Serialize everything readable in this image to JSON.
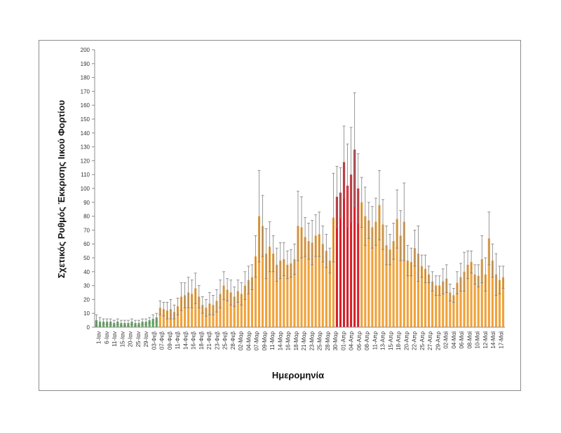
{
  "chart_data": {
    "type": "bar",
    "title": "",
    "xlabel": "Ημερομηνία",
    "ylabel": "Σχετικός Ρυθμός Έκκρισης Ιικού Φορτίου",
    "ylim": [
      0,
      200
    ],
    "yticks": [
      0,
      10,
      20,
      30,
      40,
      50,
      60,
      70,
      80,
      90,
      100,
      110,
      120,
      130,
      140,
      150,
      160,
      170,
      180,
      190,
      200
    ],
    "grid": false,
    "legend": "none",
    "colors": {
      "green": "#5aaa5a",
      "orange": "#f0a23a",
      "red": "#d4212b",
      "error": "#7f7f7f",
      "axis": "#8c8c8c"
    },
    "x_tick_labels": [
      "1-Ιαν",
      "6-Ιαν",
      "11-Ιαν",
      "15-Ιαν",
      "20-Ιαν",
      "25-Ιαν",
      "29-Ιαν",
      "03-Φεβ",
      "07-Φεβ",
      "09-Φεβ",
      "11-Φεβ",
      "14-Φεβ",
      "16-Φεβ",
      "18-Φεβ",
      "21-Φεβ",
      "23-Φεβ",
      "25-Φεβ",
      "28-Φεβ",
      "02-Μαρ",
      "04-Μαρ",
      "07-Μαρ",
      "09-Μαρ",
      "11-Μαρ",
      "14-Μαρ",
      "16-Μαρ",
      "18-Μαρ",
      "21-Μαρ",
      "23-Μαρ",
      "25-Μαρ",
      "28-Μαρ",
      "30-Μαρ",
      "01-Απρ",
      "04-Απρ",
      "06-Απρ",
      "08-Απρ",
      "11-Απρ",
      "13-Απρ",
      "15-Απρ",
      "18-Απρ",
      "20-Απρ",
      "22-Απρ",
      "25-Απρ",
      "27-Απρ",
      "29-Απρ",
      "02-Μαϊ",
      "04-Μαϊ",
      "06-Μαϊ",
      "08-Μαϊ",
      "10-Μαϊ",
      "12-Μαϊ",
      "14-Μαϊ",
      "17-Μαϊ"
    ],
    "values": [
      5,
      4,
      4,
      4,
      4,
      3,
      4,
      3,
      3,
      3,
      4,
      3,
      3,
      4,
      4,
      5,
      6,
      7,
      14,
      13,
      12,
      13,
      11,
      15,
      22,
      23,
      25,
      24,
      28,
      22,
      16,
      14,
      17,
      16,
      19,
      24,
      30,
      27,
      25,
      22,
      26,
      24,
      30,
      34,
      36,
      51,
      80,
      73,
      53,
      58,
      53,
      45,
      48,
      49,
      45,
      46,
      49,
      73,
      72,
      65,
      62,
      61,
      66,
      67,
      60,
      55,
      48,
      79,
      94,
      97,
      119,
      102,
      110,
      128,
      100,
      90,
      80,
      77,
      72,
      76,
      88,
      74,
      59,
      56,
      62,
      78,
      66,
      76,
      48,
      47,
      57,
      53,
      44,
      42,
      38,
      33,
      30,
      30,
      33,
      35,
      25,
      23,
      32,
      36,
      40,
      45,
      47,
      38,
      37,
      49,
      38,
      64,
      48,
      38,
      34,
      36
    ],
    "errors": [
      4,
      3,
      2,
      2,
      2,
      2,
      2,
      2,
      2,
      2,
      2,
      2,
      2,
      2,
      2,
      2,
      3,
      3,
      5,
      5,
      6,
      7,
      5,
      6,
      10,
      9,
      11,
      10,
      11,
      8,
      6,
      6,
      8,
      7,
      8,
      10,
      10,
      8,
      9,
      7,
      8,
      8,
      10,
      10,
      9,
      15,
      33,
      22,
      18,
      18,
      13,
      12,
      13,
      12,
      10,
      10,
      11,
      25,
      22,
      14,
      13,
      16,
      15,
      16,
      13,
      12,
      9,
      32,
      22,
      18,
      26,
      30,
      34,
      41,
      25,
      18,
      21,
      13,
      15,
      17,
      25,
      18,
      14,
      11,
      13,
      21,
      18,
      28,
      11,
      10,
      13,
      20,
      8,
      10,
      6,
      7,
      7,
      7,
      9,
      10,
      6,
      5,
      8,
      10,
      14,
      10,
      8,
      7,
      8,
      17,
      12,
      19,
      12,
      15,
      10,
      8
    ],
    "bar_colors": [
      "green",
      "green",
      "green",
      "green",
      "green",
      "green",
      "green",
      "green",
      "green",
      "green",
      "green",
      "green",
      "green",
      "green",
      "green",
      "green",
      "green",
      "green",
      "orange",
      "orange",
      "orange",
      "orange",
      "orange",
      "orange",
      "orange",
      "orange",
      "orange",
      "orange",
      "orange",
      "orange",
      "orange",
      "orange",
      "orange",
      "orange",
      "orange",
      "orange",
      "orange",
      "orange",
      "orange",
      "orange",
      "orange",
      "orange",
      "orange",
      "orange",
      "orange",
      "orange",
      "orange",
      "orange",
      "orange",
      "orange",
      "orange",
      "orange",
      "orange",
      "orange",
      "orange",
      "orange",
      "orange",
      "orange",
      "orange",
      "orange",
      "orange",
      "orange",
      "orange",
      "orange",
      "orange",
      "orange",
      "orange",
      "orange",
      "red",
      "red",
      "red",
      "red",
      "red",
      "red",
      "red",
      "orange",
      "orange",
      "orange",
      "orange",
      "orange",
      "orange",
      "orange",
      "orange",
      "orange",
      "orange",
      "orange",
      "orange",
      "orange",
      "orange",
      "orange",
      "orange",
      "orange",
      "orange",
      "orange",
      "orange",
      "orange",
      "orange",
      "orange",
      "orange",
      "orange",
      "orange",
      "orange",
      "orange",
      "orange",
      "orange",
      "orange",
      "orange",
      "orange",
      "orange",
      "orange",
      "orange",
      "orange",
      "orange",
      "orange",
      "orange",
      "orange"
    ]
  }
}
